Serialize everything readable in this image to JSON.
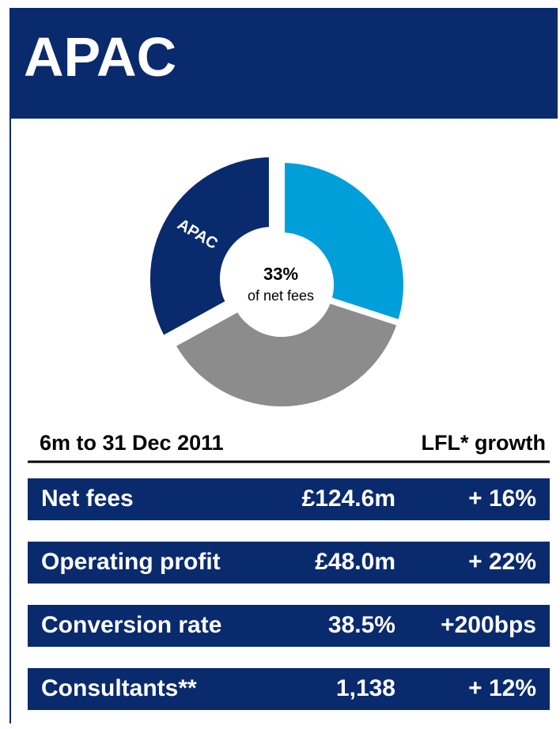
{
  "header": {
    "title": "APAC"
  },
  "donut": {
    "values": [
      30,
      37,
      33
    ],
    "colors": [
      "#009fda",
      "#8c8c8c",
      "#0a2a6e"
    ],
    "segment_label": "APAC",
    "center_value": "33%",
    "center_text": "of net fees"
  },
  "table": {
    "period": "6m to 31 Dec 2011",
    "growth_header": "LFL* growth",
    "rows": [
      [
        "Net fees",
        "£124.6m",
        "+ 16%"
      ],
      [
        "Operating profit",
        "£48.0m",
        "+ 22%"
      ],
      [
        "Conversion rate",
        "38.5%",
        "+200bps"
      ],
      [
        "Consultants**",
        "1,138",
        "+ 12%"
      ]
    ]
  }
}
